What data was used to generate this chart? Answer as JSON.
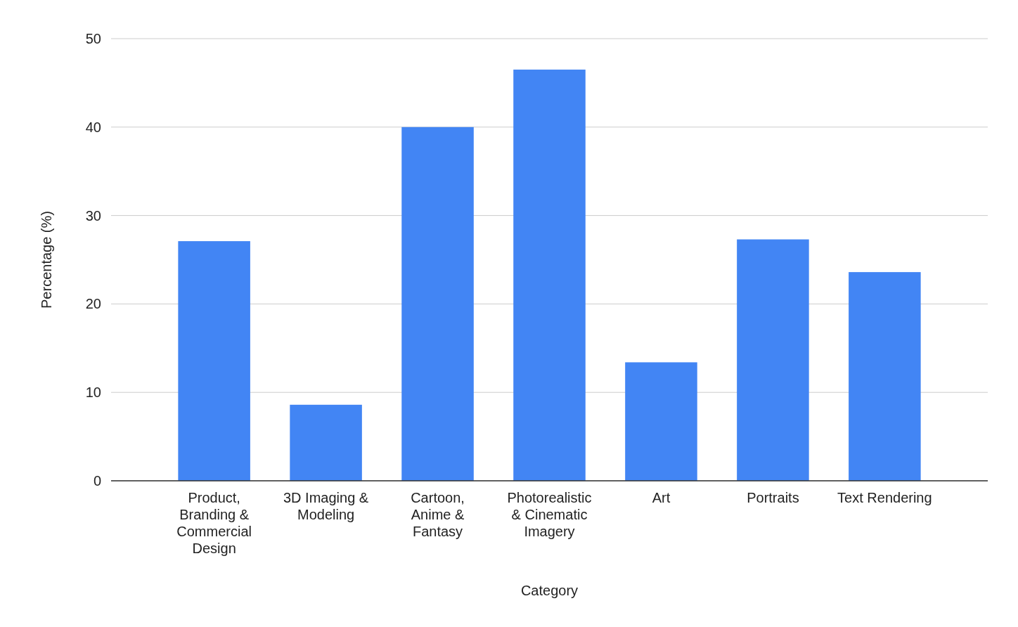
{
  "chart_data": {
    "type": "bar",
    "xlabel": "Category",
    "ylabel": "Percentage (%)",
    "categories": [
      "Product, Branding & Commercial Design",
      "3D Imaging & Modeling",
      "Cartoon, Anime & Fantasy",
      "Photorealistic & Cinematic Imagery",
      "Art",
      "Portraits",
      "Text Rendering"
    ],
    "values": [
      27.1,
      8.6,
      40,
      46.5,
      13.4,
      27.3,
      23.6
    ],
    "color": "#4285f4",
    "ylim": [
      0,
      50
    ],
    "yticks": [
      0,
      10,
      20,
      30,
      40,
      50
    ],
    "grid": "y"
  }
}
